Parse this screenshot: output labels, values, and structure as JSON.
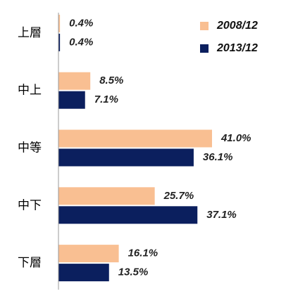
{
  "chart_data": {
    "type": "barh",
    "categories": [
      "上層",
      "中上",
      "中等",
      "中下",
      "下層"
    ],
    "series": [
      {
        "name": "2008/12",
        "color": "#f9bf92",
        "values": [
          0.4,
          8.5,
          41.0,
          25.7,
          16.1
        ],
        "value_labels": [
          "0.4%",
          "8.5%",
          "41.0%",
          "25.7%",
          "16.1%"
        ]
      },
      {
        "name": "2013/12",
        "color": "#0b1f5e",
        "values": [
          0.4,
          7.1,
          36.1,
          37.1,
          13.5
        ],
        "value_labels": [
          "0.4%",
          "7.1%",
          "36.1%",
          "37.1%",
          "13.5%"
        ]
      }
    ],
    "xlim": [
      0,
      60
    ],
    "legend": "upper right"
  }
}
